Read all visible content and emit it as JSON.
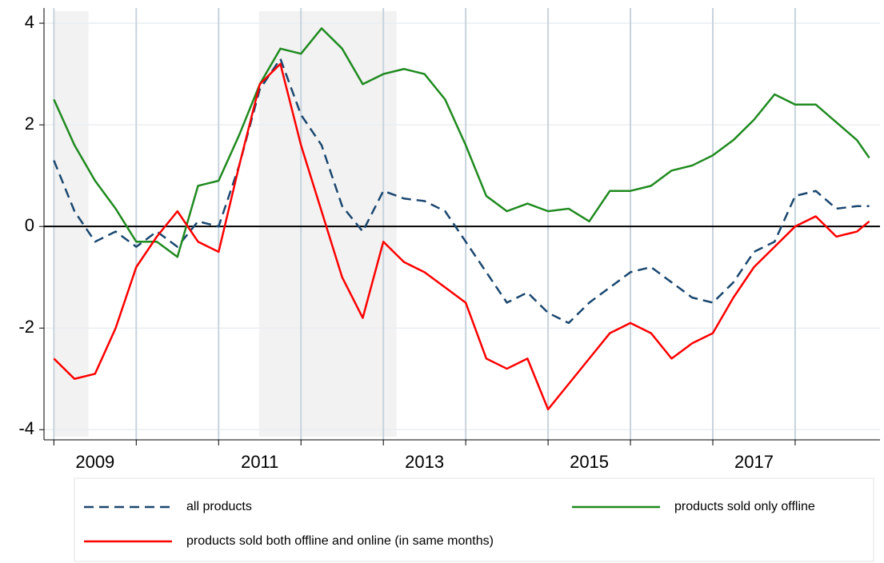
{
  "chart_data": {
    "type": "line",
    "x": [
      2009.0,
      2009.25,
      2009.5,
      2009.75,
      2010.0,
      2010.25,
      2010.5,
      2010.75,
      2011.0,
      2011.25,
      2011.5,
      2011.75,
      2012.0,
      2012.25,
      2012.5,
      2012.75,
      2013.0,
      2013.25,
      2013.5,
      2013.75,
      2014.0,
      2014.25,
      2014.5,
      2014.75,
      2015.0,
      2015.25,
      2015.5,
      2015.75,
      2016.0,
      2016.25,
      2016.5,
      2016.75,
      2017.0,
      2017.25,
      2017.5,
      2017.75,
      2018.0,
      2018.25,
      2018.5,
      2018.75,
      2018.9
    ],
    "series": [
      {
        "name": "all products",
        "color": "#1a476f",
        "style": "dashed",
        "values": [
          1.3,
          0.3,
          -0.3,
          -0.1,
          -0.4,
          -0.1,
          -0.4,
          0.1,
          0.0,
          1.2,
          2.7,
          3.3,
          2.2,
          1.6,
          0.4,
          -0.1,
          0.7,
          0.55,
          0.5,
          0.3,
          -0.3,
          -0.9,
          -1.5,
          -1.3,
          -1.7,
          -1.9,
          -1.5,
          -1.2,
          -0.9,
          -0.8,
          -1.1,
          -1.4,
          -1.5,
          -1.1,
          -0.5,
          -0.3,
          0.6,
          0.7,
          0.35,
          0.4,
          0.4
        ]
      },
      {
        "name": "products sold only offline",
        "color": "#1f8a1f",
        "style": "solid",
        "values": [
          2.5,
          1.6,
          0.9,
          0.35,
          -0.3,
          -0.3,
          -0.6,
          0.8,
          0.9,
          1.8,
          2.8,
          3.5,
          3.4,
          3.9,
          3.5,
          2.8,
          3.0,
          3.1,
          3.0,
          2.5,
          1.6,
          0.6,
          0.3,
          0.45,
          0.3,
          0.35,
          0.1,
          0.7,
          0.7,
          0.8,
          1.1,
          1.2,
          1.4,
          1.7,
          2.1,
          2.6,
          2.4,
          2.4,
          2.05,
          1.7,
          1.35
        ]
      },
      {
        "name": "products sold both offline and online (in same months)",
        "color": "#ff0000",
        "style": "solid",
        "values": [
          -2.6,
          -3.0,
          -2.9,
          -2.0,
          -0.8,
          -0.2,
          0.3,
          -0.3,
          -0.5,
          1.2,
          2.8,
          3.2,
          1.6,
          0.3,
          -1.0,
          -1.8,
          -0.3,
          -0.7,
          -0.9,
          -1.2,
          -1.5,
          -2.6,
          -2.8,
          -2.6,
          -3.6,
          -3.1,
          -2.6,
          -2.1,
          -1.9,
          -2.1,
          -2.6,
          -2.3,
          -2.1,
          -1.4,
          -0.8,
          -0.4,
          0.0,
          0.2,
          -0.2,
          -0.1,
          0.1
        ]
      }
    ],
    "xlim": [
      2008.88,
      2019.03
    ],
    "xticks": [
      {
        "value": 2009.5,
        "label": "2009"
      },
      {
        "value": 2011.5,
        "label": "2011"
      },
      {
        "value": 2013.5,
        "label": "2013"
      },
      {
        "value": 2015.5,
        "label": "2015"
      },
      {
        "value": 2017.5,
        "label": "2017"
      }
    ],
    "xgrid": [
      2009,
      2010,
      2011,
      2012,
      2013,
      2014,
      2015,
      2016,
      2017,
      2018
    ],
    "ylim": [
      -4.2,
      4.3
    ],
    "yticks": [
      -4,
      -2,
      0,
      2,
      4
    ],
    "grid": true,
    "zero_line": true,
    "shaded_periods": [
      [
        2009.0,
        2009.42
      ],
      [
        2011.49,
        2013.16
      ]
    ],
    "legend": "bottom"
  }
}
